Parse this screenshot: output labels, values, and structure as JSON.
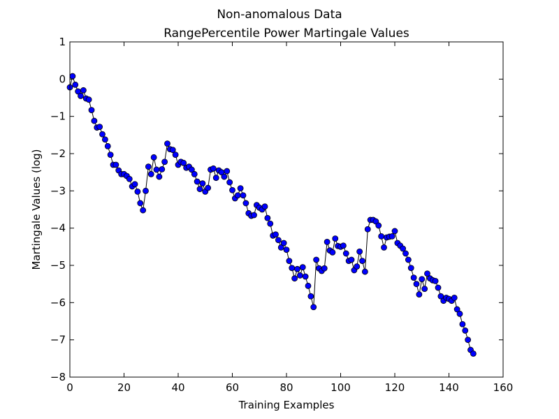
{
  "chart_data": {
    "type": "line",
    "title": "Non-anomalous Data",
    "subtitle": "RangePercentile Power Martingale Values",
    "xlabel": "Training Examples",
    "ylabel": "Martingale Values (log)",
    "xlim": [
      0,
      160
    ],
    "ylim": [
      -8,
      1
    ],
    "xticks": [
      0,
      20,
      40,
      60,
      80,
      100,
      120,
      140,
      160
    ],
    "yticks": [
      1,
      0,
      -1,
      -2,
      -3,
      -4,
      -5,
      -6,
      -7,
      -8
    ],
    "xtick_labels": [
      "0",
      "20",
      "40",
      "60",
      "80",
      "100",
      "120",
      "140",
      "160"
    ],
    "ytick_labels": [
      "1",
      "0",
      "−1",
      "−2",
      "−3",
      "−4",
      "−5",
      "−6",
      "−7",
      "−8"
    ],
    "grid": false,
    "legend": false,
    "line_color": "#000000",
    "marker_color": "#0000ff",
    "marker_edge_color": "#000000",
    "x": [
      0,
      1,
      2,
      3,
      4,
      5,
      6,
      7,
      8,
      9,
      10,
      11,
      12,
      13,
      14,
      15,
      16,
      17,
      18,
      19,
      20,
      21,
      22,
      23,
      24,
      25,
      26,
      27,
      28,
      29,
      30,
      31,
      32,
      33,
      34,
      35,
      36,
      37,
      38,
      39,
      40,
      41,
      42,
      43,
      44,
      45,
      46,
      47,
      48,
      49,
      50,
      51,
      52,
      53,
      54,
      55,
      56,
      57,
      58,
      59,
      60,
      61,
      62,
      63,
      64,
      65,
      66,
      67,
      68,
      69,
      70,
      71,
      72,
      73,
      74,
      75,
      76,
      77,
      78,
      79,
      80,
      81,
      82,
      83,
      84,
      85,
      86,
      87,
      88,
      89,
      90,
      91,
      92,
      93,
      94,
      95,
      96,
      97,
      98,
      99,
      100,
      101,
      102,
      103,
      104,
      105,
      106,
      107,
      108,
      109,
      110,
      111,
      112,
      113,
      114,
      115,
      116,
      117,
      118,
      119,
      120,
      121,
      122,
      123,
      124,
      125,
      126,
      127,
      128,
      129,
      130,
      131,
      132,
      133,
      134,
      135,
      136,
      137,
      138,
      139,
      140,
      141,
      142,
      143,
      144,
      145,
      146,
      147,
      148,
      149
    ],
    "y": [
      -0.22,
      0.08,
      -0.15,
      -0.33,
      -0.45,
      -0.3,
      -0.52,
      -0.55,
      -0.83,
      -1.12,
      -1.3,
      -1.28,
      -1.48,
      -1.62,
      -1.8,
      -2.03,
      -2.3,
      -2.3,
      -2.45,
      -2.55,
      -2.55,
      -2.6,
      -2.68,
      -2.88,
      -2.82,
      -3.02,
      -3.33,
      -3.52,
      -3.0,
      -2.35,
      -2.55,
      -2.1,
      -2.43,
      -2.62,
      -2.42,
      -2.22,
      -1.73,
      -1.88,
      -1.9,
      -2.03,
      -2.3,
      -2.22,
      -2.25,
      -2.38,
      -2.35,
      -2.43,
      -2.55,
      -2.75,
      -2.95,
      -2.8,
      -3.02,
      -2.92,
      -2.43,
      -2.4,
      -2.65,
      -2.45,
      -2.5,
      -2.62,
      -2.47,
      -2.77,
      -2.98,
      -3.2,
      -3.12,
      -2.93,
      -3.12,
      -3.33,
      -3.6,
      -3.67,
      -3.65,
      -3.38,
      -3.45,
      -3.5,
      -3.42,
      -3.73,
      -3.88,
      -4.2,
      -4.17,
      -4.32,
      -4.52,
      -4.4,
      -4.58,
      -4.88,
      -5.07,
      -5.35,
      -5.1,
      -5.27,
      -5.05,
      -5.3,
      -5.55,
      -5.83,
      -6.12,
      -4.85,
      -5.08,
      -5.15,
      -5.08,
      -4.37,
      -4.6,
      -4.65,
      -4.28,
      -4.48,
      -4.5,
      -4.47,
      -4.68,
      -4.88,
      -4.85,
      -5.13,
      -5.03,
      -4.63,
      -4.88,
      -5.17,
      -4.03,
      -3.78,
      -3.78,
      -3.82,
      -3.93,
      -4.22,
      -4.52,
      -4.25,
      -4.23,
      -4.22,
      -4.08,
      -4.4,
      -4.47,
      -4.55,
      -4.68,
      -4.85,
      -5.07,
      -5.33,
      -5.5,
      -5.78,
      -5.37,
      -5.63,
      -5.22,
      -5.35,
      -5.4,
      -5.42,
      -5.6,
      -5.83,
      -5.95,
      -5.87,
      -5.9,
      -5.95,
      -5.87,
      -6.18,
      -6.3,
      -6.58,
      -6.75,
      -7.0,
      -7.27,
      -7.37
    ]
  }
}
